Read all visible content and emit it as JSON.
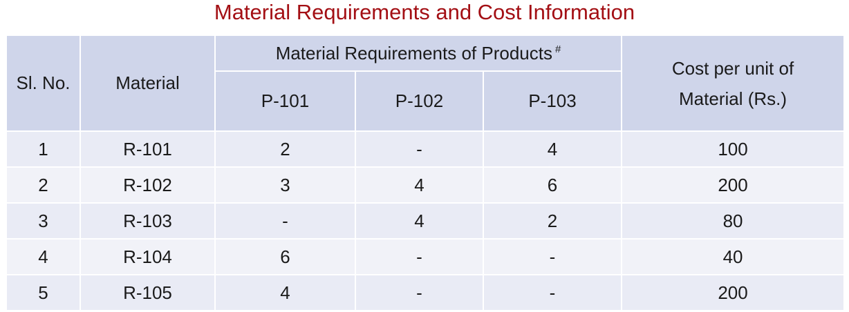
{
  "title": "Material Requirements  and Cost Information",
  "table": {
    "headers": {
      "sl_no": "Sl. No.",
      "material": "Material",
      "group": "Material Requirements of Products",
      "group_note": "#",
      "products": [
        "P-101",
        "P-102",
        "P-103"
      ],
      "cost": "Cost per unit of Material (Rs.)"
    },
    "rows": [
      [
        1,
        "R-101",
        2,
        "-",
        4,
        100
      ],
      [
        2,
        "R-102",
        3,
        4,
        6,
        200
      ],
      [
        3,
        "R-103",
        "-",
        4,
        2,
        80
      ],
      [
        4,
        "R-104",
        6,
        "-",
        "-",
        40
      ],
      [
        5,
        "R-105",
        4,
        "-",
        "-",
        200
      ]
    ]
  }
}
